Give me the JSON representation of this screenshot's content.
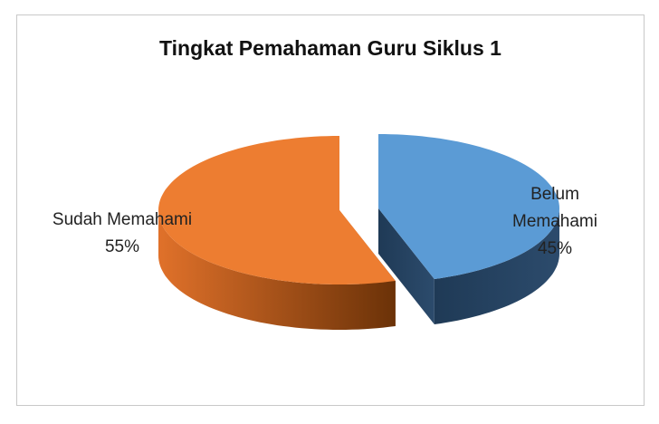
{
  "chart_data": {
    "type": "pie3d",
    "title": "Tingkat Pemahaman Guru Siklus 1",
    "categories": [
      "Belum Memahami",
      "Sudah Memahami"
    ],
    "values": [
      45,
      55
    ],
    "value_labels": [
      "45%",
      "55%"
    ],
    "colors": [
      "#5b9bd5",
      "#ed7d31"
    ]
  }
}
